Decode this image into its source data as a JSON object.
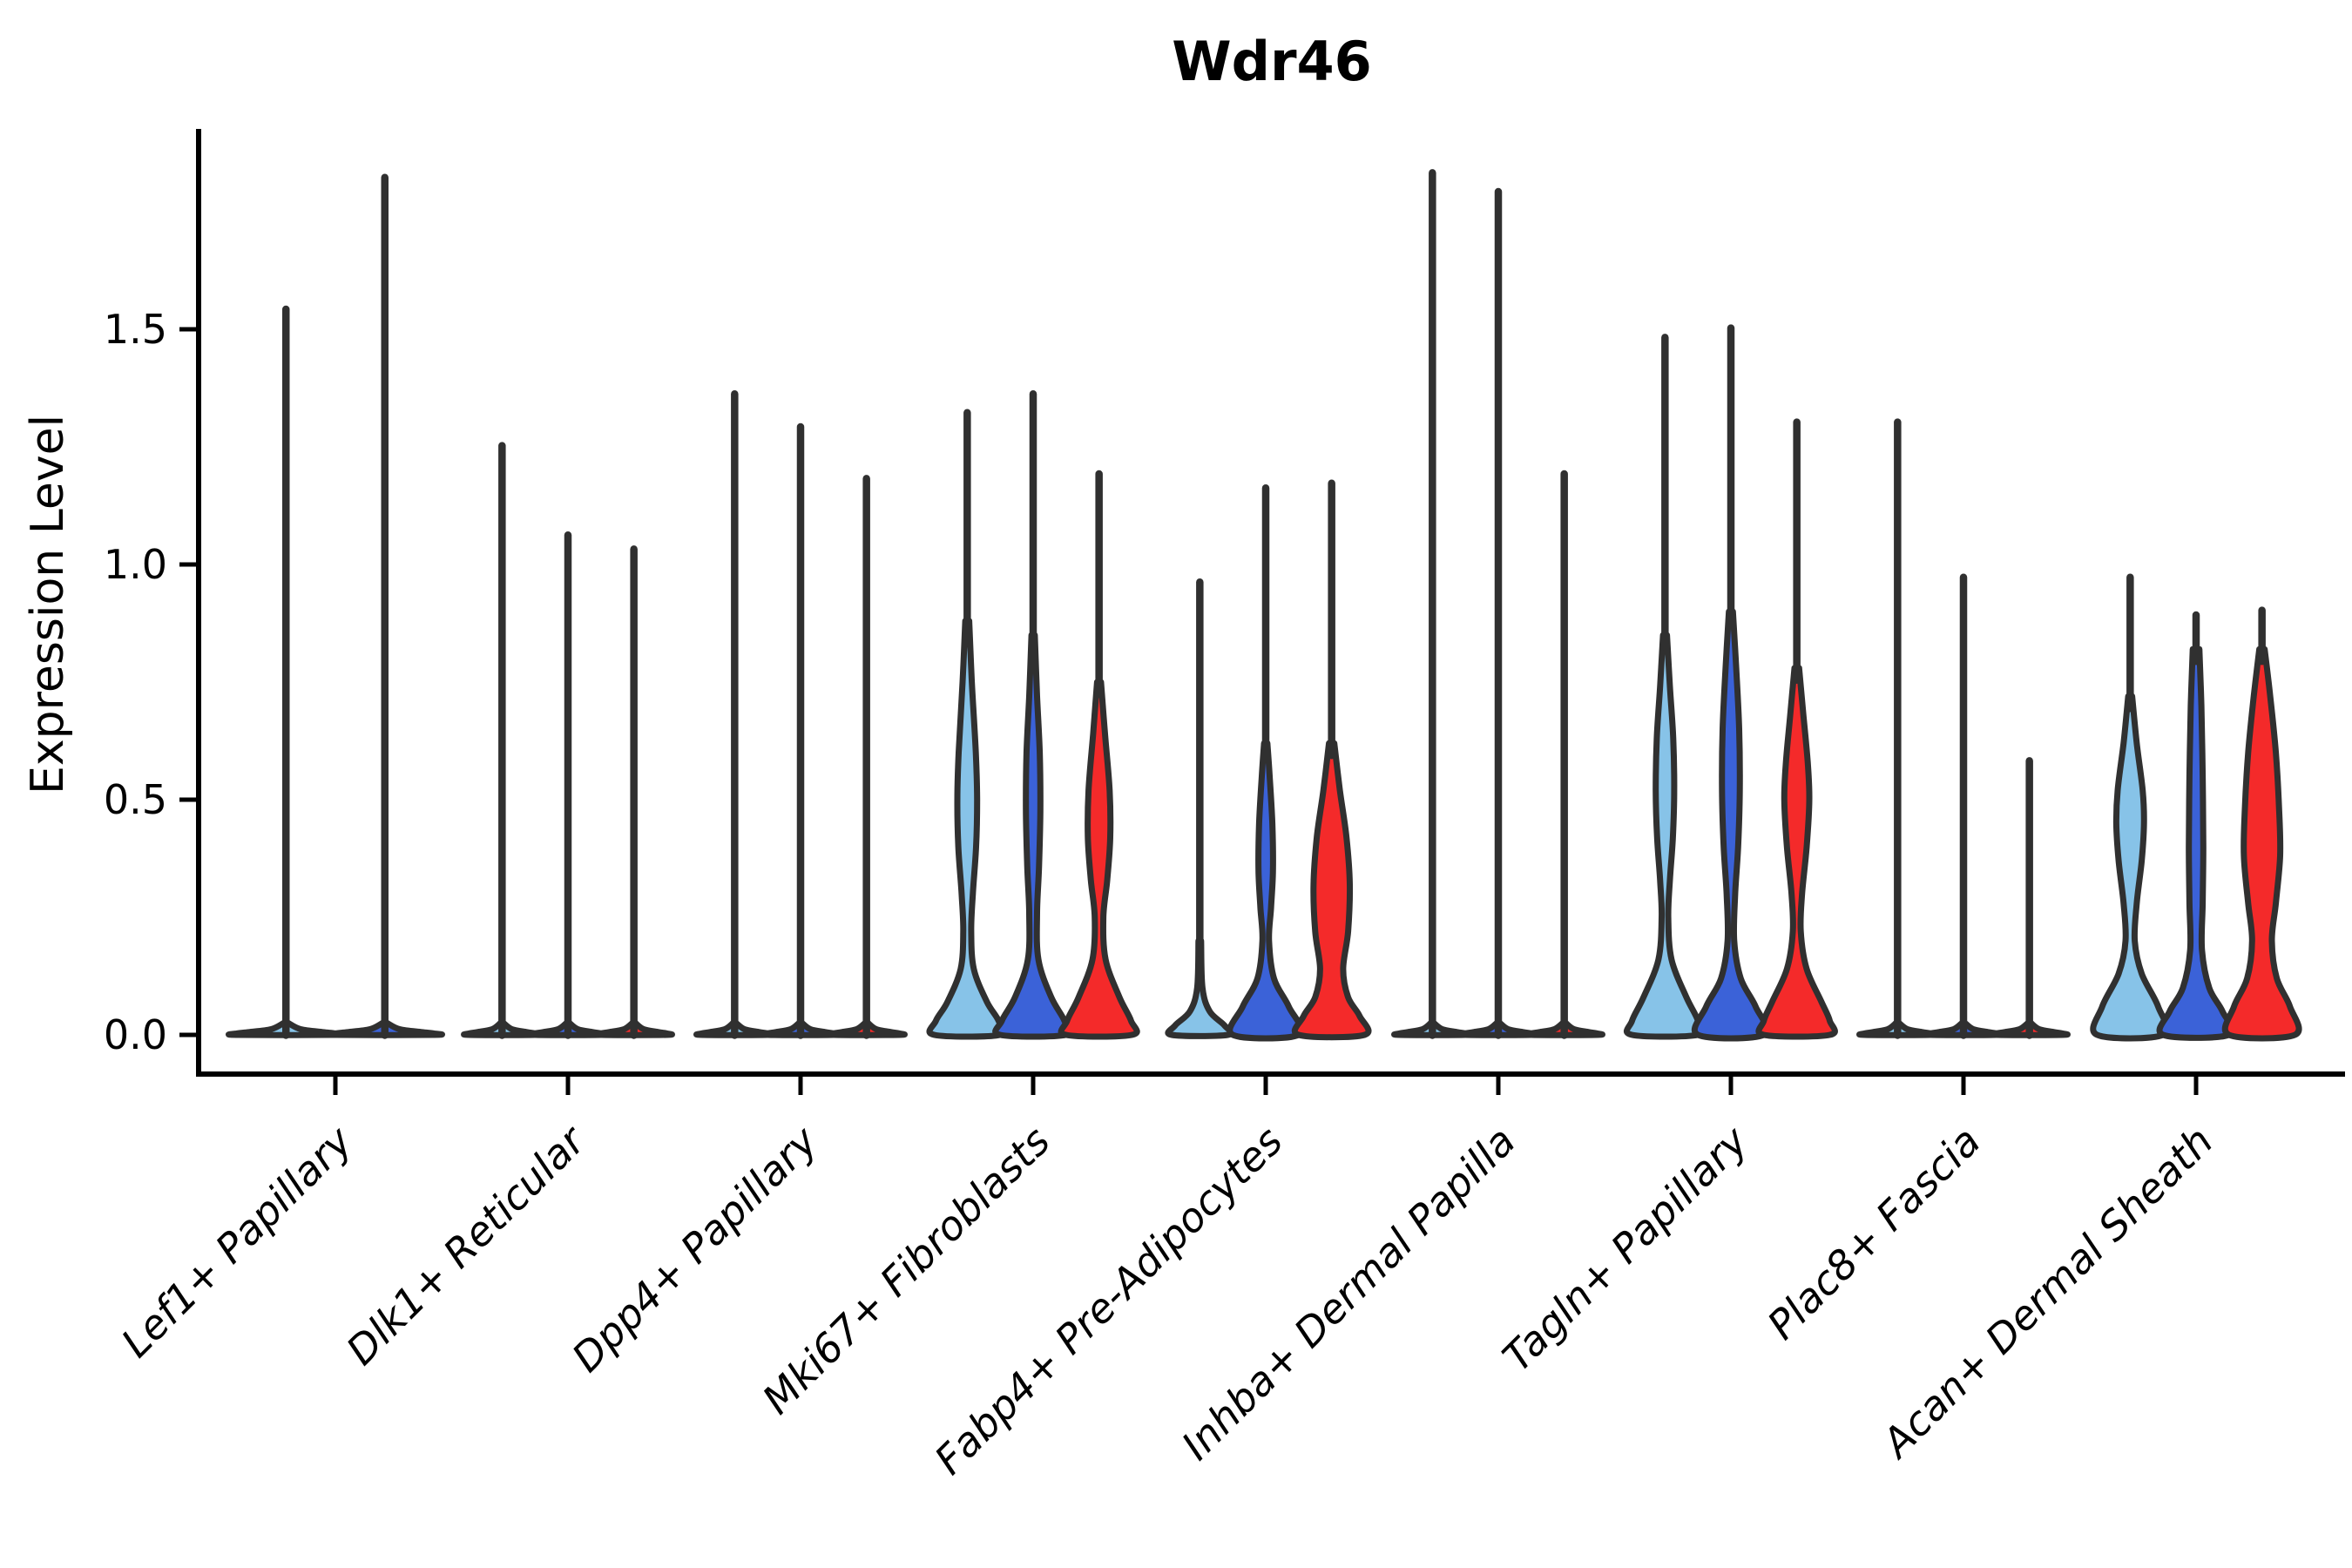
{
  "title": "Wdr46",
  "axes": {
    "y_label": "Expression Level",
    "y_tick_labels": [
      "0.0",
      "0.5",
      "1.0",
      "1.5"
    ]
  },
  "chart_data": {
    "type": "violin",
    "title": "Wdr46",
    "xlabel": "",
    "ylabel": "Expression Level",
    "ylim": [
      -0.08,
      1.93
    ],
    "yticks": [
      0.0,
      0.5,
      1.0,
      1.5
    ],
    "grid": false,
    "legend": "none",
    "categories": [
      "Lef1+ Papillary",
      "Dlk1+ Reticular",
      "Dpp4+ Papillary",
      "Mki67+ Fibroblasts",
      "Fabp4+ Pre-Adipocytes",
      "Inhba+ Dermal Papilla",
      "Tagln+ Papillary",
      "Plac8+ Fascia",
      "Acan+ Dermal Sheath"
    ],
    "series_colors": [
      "#87C3E8",
      "#3B62D8",
      "#F42A2A"
    ],
    "edge_color": "#303030",
    "note": "Split violin plot; most mass at 0. 'max' = top of whisker-like KDE tail (expression level). 'profile' = [expression, relative half-width] pairs describing the visible violin body from top to baseline.",
    "groups": [
      {
        "category": "Lef1+ Papillary",
        "violins": [
          {
            "color": 0,
            "max": 1.55,
            "profile": [
              [
                0.025,
                0.05
              ],
              [
                0.012,
                0.3
              ],
              [
                0.006,
                0.75
              ],
              [
                0.003,
                1.0
              ],
              [
                0,
                1.0
              ]
            ]
          },
          {
            "color": 1,
            "max": 1.83,
            "profile": [
              [
                0.025,
                0.05
              ],
              [
                0.012,
                0.3
              ],
              [
                0.006,
                0.75
              ],
              [
                0.003,
                1.0
              ],
              [
                0,
                1.0
              ]
            ]
          }
        ]
      },
      {
        "category": "Dlk1+ Reticular",
        "violins": [
          {
            "color": 0,
            "max": 1.26,
            "profile": [
              [
                0.025,
                0.05
              ],
              [
                0.012,
                0.3
              ],
              [
                0.006,
                0.75
              ],
              [
                0.003,
                1.0
              ],
              [
                0,
                1.0
              ]
            ]
          },
          {
            "color": 1,
            "max": 1.07,
            "profile": [
              [
                0.025,
                0.05
              ],
              [
                0.012,
                0.3
              ],
              [
                0.006,
                0.75
              ],
              [
                0.003,
                1.0
              ],
              [
                0,
                1.0
              ]
            ]
          },
          {
            "color": 2,
            "max": 1.04,
            "profile": [
              [
                0.025,
                0.05
              ],
              [
                0.012,
                0.3
              ],
              [
                0.006,
                0.75
              ],
              [
                0.003,
                1.0
              ],
              [
                0,
                1.0
              ]
            ]
          }
        ]
      },
      {
        "category": "Dpp4+ Papillary",
        "violins": [
          {
            "color": 0,
            "max": 1.37,
            "profile": [
              [
                0.025,
                0.05
              ],
              [
                0.012,
                0.3
              ],
              [
                0.006,
                0.75
              ],
              [
                0.003,
                1.0
              ],
              [
                0,
                1.0
              ]
            ]
          },
          {
            "color": 1,
            "max": 1.3,
            "profile": [
              [
                0.025,
                0.05
              ],
              [
                0.012,
                0.3
              ],
              [
                0.006,
                0.75
              ],
              [
                0.003,
                1.0
              ],
              [
                0,
                1.0
              ]
            ]
          },
          {
            "color": 2,
            "max": 1.19,
            "profile": [
              [
                0.025,
                0.05
              ],
              [
                0.012,
                0.3
              ],
              [
                0.006,
                0.75
              ],
              [
                0.003,
                1.0
              ],
              [
                0,
                1.0
              ]
            ]
          }
        ]
      },
      {
        "category": "Mki67+ Fibroblasts",
        "violins": [
          {
            "color": 0,
            "max": 1.33,
            "profile": [
              [
                0.88,
                0.06
              ],
              [
                0.75,
                0.14
              ],
              [
                0.6,
                0.26
              ],
              [
                0.5,
                0.3
              ],
              [
                0.4,
                0.27
              ],
              [
                0.3,
                0.17
              ],
              [
                0.22,
                0.12
              ],
              [
                0.14,
                0.2
              ],
              [
                0.07,
                0.6
              ],
              [
                0.03,
                0.95
              ],
              [
                0,
                1.0
              ]
            ]
          },
          {
            "color": 1,
            "max": 1.37,
            "profile": [
              [
                0.85,
                0.05
              ],
              [
                0.72,
                0.12
              ],
              [
                0.6,
                0.2
              ],
              [
                0.48,
                0.22
              ],
              [
                0.36,
                0.18
              ],
              [
                0.26,
                0.12
              ],
              [
                0.16,
                0.16
              ],
              [
                0.08,
                0.55
              ],
              [
                0.03,
                0.95
              ],
              [
                0,
                1.0
              ]
            ]
          },
          {
            "color": 2,
            "max": 1.2,
            "profile": [
              [
                0.75,
                0.06
              ],
              [
                0.64,
                0.18
              ],
              [
                0.52,
                0.32
              ],
              [
                0.42,
                0.34
              ],
              [
                0.33,
                0.25
              ],
              [
                0.25,
                0.13
              ],
              [
                0.16,
                0.2
              ],
              [
                0.08,
                0.62
              ],
              [
                0.03,
                0.97
              ],
              [
                0,
                1.0
              ]
            ]
          }
        ]
      },
      {
        "category": "Fabp4+ Pre-Adipocytes",
        "violins": [
          {
            "color": 0,
            "max": 0.97,
            "profile": [
              [
                0.2,
                0.04
              ],
              [
                0.1,
                0.08
              ],
              [
                0.05,
                0.3
              ],
              [
                0.02,
                0.75
              ],
              [
                0,
                0.85
              ]
            ]
          },
          {
            "color": 1,
            "max": 1.17,
            "profile": [
              [
                0.62,
                0.05
              ],
              [
                0.55,
                0.12
              ],
              [
                0.45,
                0.2
              ],
              [
                0.35,
                0.22
              ],
              [
                0.27,
                0.16
              ],
              [
                0.2,
                0.1
              ],
              [
                0.12,
                0.25
              ],
              [
                0.06,
                0.7
              ],
              [
                0,
                1.0
              ]
            ]
          },
          {
            "color": 2,
            "max": 1.18,
            "profile": [
              [
                0.62,
                0.08
              ],
              [
                0.52,
                0.25
              ],
              [
                0.42,
                0.45
              ],
              [
                0.32,
                0.55
              ],
              [
                0.22,
                0.5
              ],
              [
                0.14,
                0.35
              ],
              [
                0.08,
                0.5
              ],
              [
                0.04,
                0.85
              ],
              [
                0,
                1.0
              ]
            ]
          }
        ]
      },
      {
        "category": "Inhba+ Dermal Papilla",
        "violins": [
          {
            "color": 0,
            "max": 1.84,
            "profile": [
              [
                0.025,
                0.05
              ],
              [
                0.012,
                0.3
              ],
              [
                0.006,
                0.75
              ],
              [
                0.003,
                1.0
              ],
              [
                0,
                1.0
              ]
            ]
          },
          {
            "color": 1,
            "max": 1.8,
            "profile": [
              [
                0.025,
                0.05
              ],
              [
                0.012,
                0.3
              ],
              [
                0.006,
                0.75
              ],
              [
                0.003,
                1.0
              ],
              [
                0,
                1.0
              ]
            ]
          },
          {
            "color": 2,
            "max": 1.2,
            "profile": [
              [
                0.025,
                0.05
              ],
              [
                0.012,
                0.3
              ],
              [
                0.006,
                0.75
              ],
              [
                0.003,
                1.0
              ],
              [
                0,
                1.0
              ]
            ]
          }
        ]
      },
      {
        "category": "Tagln+ Papillary",
        "violins": [
          {
            "color": 0,
            "max": 1.49,
            "profile": [
              [
                0.85,
                0.06
              ],
              [
                0.74,
                0.15
              ],
              [
                0.63,
                0.25
              ],
              [
                0.52,
                0.28
              ],
              [
                0.42,
                0.24
              ],
              [
                0.33,
                0.15
              ],
              [
                0.25,
                0.1
              ],
              [
                0.16,
                0.2
              ],
              [
                0.08,
                0.65
              ],
              [
                0.03,
                1.0
              ],
              [
                0,
                1.0
              ]
            ]
          },
          {
            "color": 1,
            "max": 1.51,
            "profile": [
              [
                0.9,
                0.06
              ],
              [
                0.78,
                0.16
              ],
              [
                0.65,
                0.25
              ],
              [
                0.52,
                0.27
              ],
              [
                0.4,
                0.22
              ],
              [
                0.3,
                0.13
              ],
              [
                0.2,
                0.1
              ],
              [
                0.12,
                0.3
              ],
              [
                0.06,
                0.75
              ],
              [
                0,
                1.0
              ]
            ]
          },
          {
            "color": 2,
            "max": 1.31,
            "profile": [
              [
                0.78,
                0.07
              ],
              [
                0.68,
                0.2
              ],
              [
                0.58,
                0.33
              ],
              [
                0.5,
                0.38
              ],
              [
                0.4,
                0.3
              ],
              [
                0.3,
                0.16
              ],
              [
                0.22,
                0.12
              ],
              [
                0.14,
                0.3
              ],
              [
                0.07,
                0.75
              ],
              [
                0.03,
                1.0
              ],
              [
                0,
                1.0
              ]
            ]
          }
        ]
      },
      {
        "category": "Plac8+ Fascia",
        "violins": [
          {
            "color": 0,
            "max": 1.31,
            "profile": [
              [
                0.025,
                0.05
              ],
              [
                0.012,
                0.3
              ],
              [
                0.006,
                0.75
              ],
              [
                0.003,
                1.0
              ],
              [
                0,
                1.0
              ]
            ]
          },
          {
            "color": 1,
            "max": 0.98,
            "profile": [
              [
                0.025,
                0.05
              ],
              [
                0.012,
                0.3
              ],
              [
                0.006,
                0.75
              ],
              [
                0.003,
                1.0
              ],
              [
                0,
                1.0
              ]
            ]
          },
          {
            "color": 2,
            "max": 0.59,
            "profile": [
              [
                0.025,
                0.05
              ],
              [
                0.012,
                0.3
              ],
              [
                0.006,
                0.75
              ],
              [
                0.003,
                1.0
              ],
              [
                0,
                1.0
              ]
            ]
          }
        ]
      },
      {
        "category": "Acan+ Dermal Sheath",
        "violins": [
          {
            "color": 0,
            "max": 0.98,
            "profile": [
              [
                0.72,
                0.06
              ],
              [
                0.62,
                0.2
              ],
              [
                0.52,
                0.38
              ],
              [
                0.45,
                0.42
              ],
              [
                0.37,
                0.35
              ],
              [
                0.28,
                0.2
              ],
              [
                0.2,
                0.14
              ],
              [
                0.13,
                0.35
              ],
              [
                0.06,
                0.85
              ],
              [
                0,
                1.0
              ]
            ]
          },
          {
            "color": 1,
            "max": 0.9,
            "profile": [
              [
                0.82,
                0.1
              ],
              [
                0.7,
                0.16
              ],
              [
                0.55,
                0.2
              ],
              [
                0.4,
                0.22
              ],
              [
                0.28,
                0.2
              ],
              [
                0.18,
                0.18
              ],
              [
                0.1,
                0.4
              ],
              [
                0.05,
                0.8
              ],
              [
                0,
                1.0
              ]
            ]
          },
          {
            "color": 2,
            "max": 0.91,
            "profile": [
              [
                0.82,
                0.08
              ],
              [
                0.72,
                0.25
              ],
              [
                0.6,
                0.42
              ],
              [
                0.48,
                0.52
              ],
              [
                0.38,
                0.55
              ],
              [
                0.28,
                0.42
              ],
              [
                0.2,
                0.3
              ],
              [
                0.12,
                0.45
              ],
              [
                0.06,
                0.85
              ],
              [
                0,
                1.0
              ]
            ]
          }
        ]
      }
    ]
  }
}
